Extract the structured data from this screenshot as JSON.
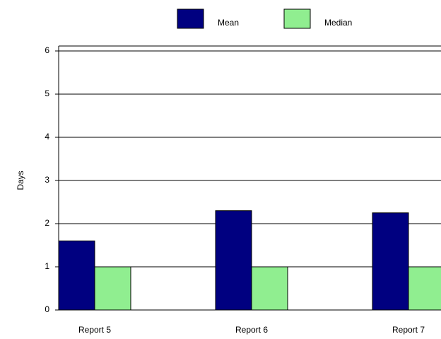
{
  "chart_data": {
    "type": "bar",
    "y_label": "Days",
    "categories": [
      "Report 5",
      "Report 6",
      "Report 7"
    ],
    "series": [
      {
        "name": "Mean",
        "color": "#000080",
        "values": [
          1.6,
          2.3,
          2.25
        ]
      },
      {
        "name": "Median",
        "color": "#90ee90",
        "values": [
          1,
          1,
          1
        ]
      }
    ],
    "ylim": [
      0,
      6
    ],
    "yticks": [
      0,
      1,
      2,
      3,
      4,
      5,
      6
    ],
    "grid": true,
    "legend": "top"
  }
}
